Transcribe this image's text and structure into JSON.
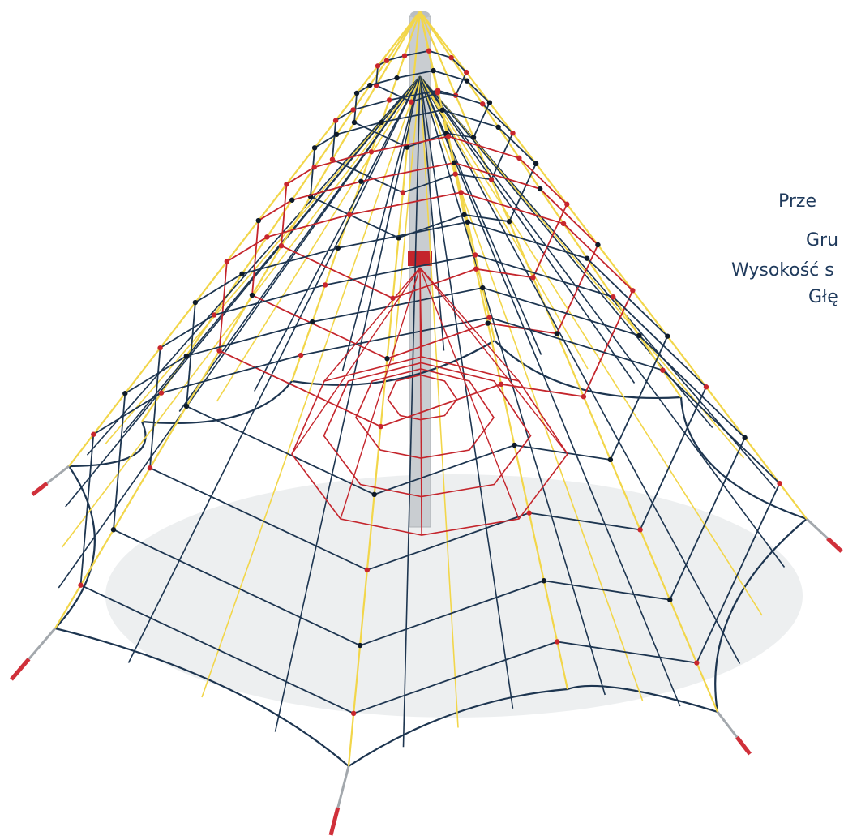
{
  "image": {
    "subject": "rope-pyramid-climbing-net",
    "colors": {
      "background": "#ffffff",
      "shadow": "#e6e8ea",
      "mast": "#c9cdd1",
      "rope_yellow": "#f2d64a",
      "rope_navy": "#1d3550",
      "rope_red": "#c4252c",
      "knot_red": "#c8262c",
      "knot_black": "#0e1a28",
      "anchor_steel": "#a3a8ad",
      "anchor_tip": "#d0303a",
      "text": "#1f3a5c"
    },
    "icon_names": [
      "mast",
      "net",
      "ground-anchors"
    ]
  },
  "specs": {
    "line1": "Prze",
    "line2": "Gru",
    "line3": "Wysokość s",
    "line4": "Głę"
  }
}
